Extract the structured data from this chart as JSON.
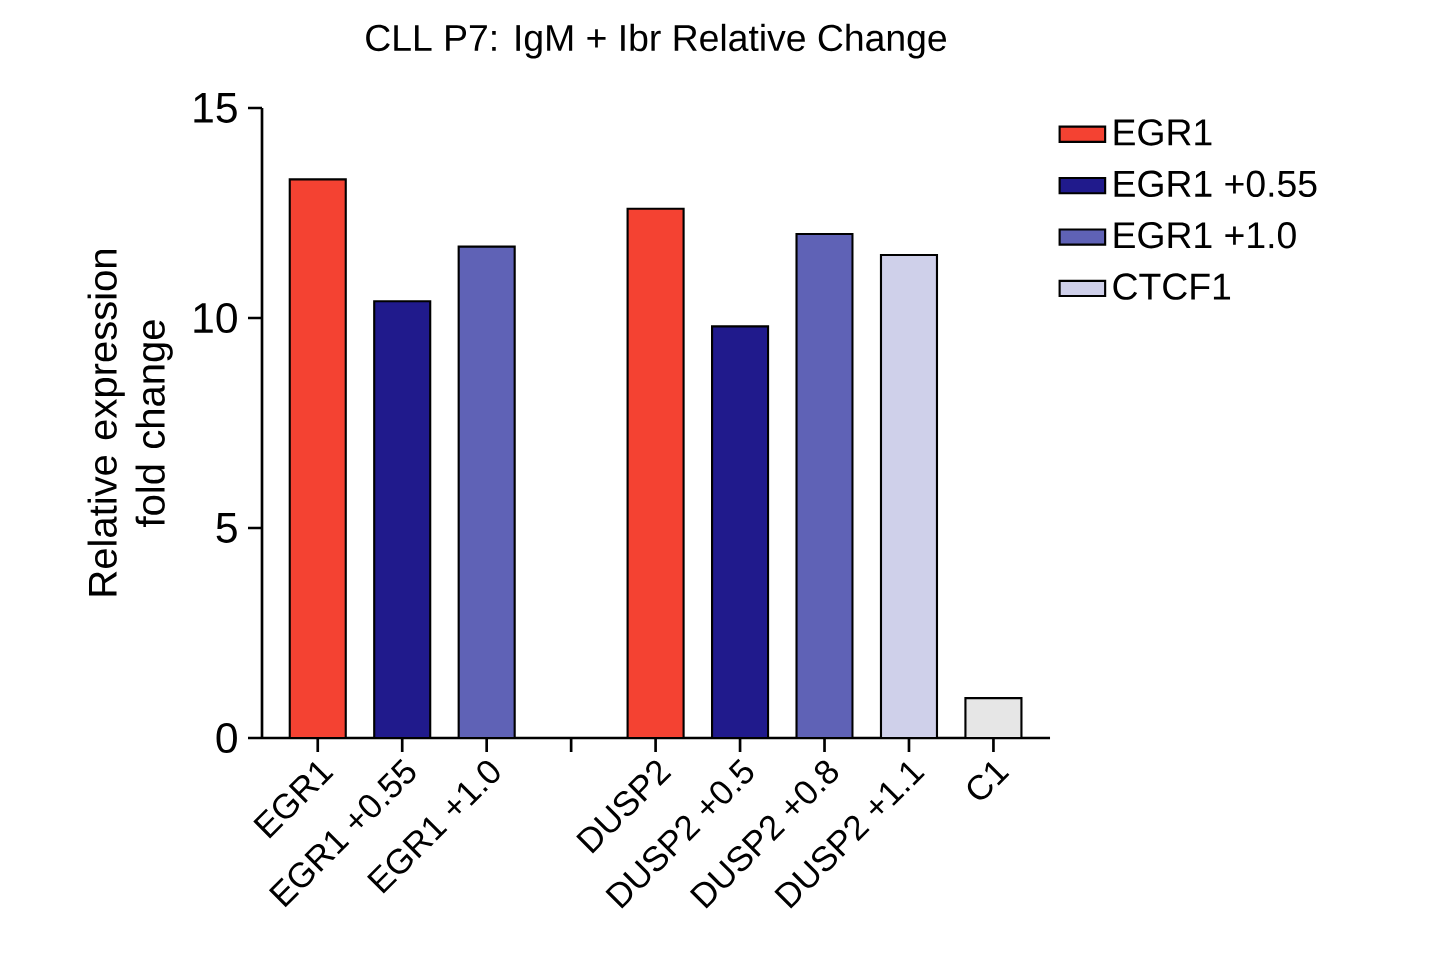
{
  "chart_data": {
    "type": "bar",
    "title": "CLL P7: IgM + Ibr Relative Change",
    "ylabel": "Relative expression fold change",
    "categories": [
      "EGR1",
      "EGR1 +0.55",
      "EGR1 +1.0",
      null,
      "DUSP2",
      "DUSP2 +0.5",
      "DUSP2 +0.8",
      "DUSP2 +1.1",
      "C1"
    ],
    "series": [
      {
        "name": "EGR1",
        "color": "#f44232",
        "values": [
          13.3,
          null,
          null,
          null,
          12.6,
          null,
          null,
          null,
          null
        ]
      },
      {
        "name": "EGR1 +0.55",
        "color": "#201a8c",
        "values": [
          null,
          10.4,
          null,
          null,
          null,
          9.8,
          null,
          null,
          null
        ]
      },
      {
        "name": "EGR1 +1.0",
        "color": "#5f62b6",
        "values": [
          null,
          null,
          11.7,
          null,
          null,
          null,
          12.0,
          null,
          null
        ]
      },
      {
        "name": "CTCF1",
        "color": "#cfd0ea",
        "values": [
          null,
          null,
          null,
          null,
          null,
          null,
          null,
          11.5,
          null
        ]
      },
      {
        "color": "#e6e6e6",
        "values": [
          null,
          null,
          null,
          null,
          null,
          null,
          null,
          null,
          0.95
        ]
      }
    ],
    "ylim": [
      0,
      15
    ],
    "yticks": [
      0,
      5,
      10,
      15
    ],
    "grid": false,
    "legend": "top right"
  }
}
